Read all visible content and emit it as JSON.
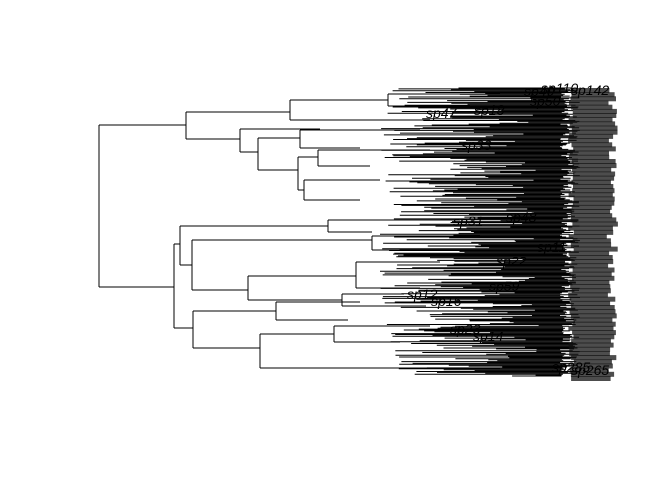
{
  "diagram": {
    "type": "phylogenetic-tree",
    "orientation": "rightwards",
    "tip_count": 320,
    "tip_labels_legible": [
      "sp40",
      "sp110",
      "sp142",
      "sp50",
      "sp47",
      "sp18",
      "sp33",
      "sp31",
      "sp48",
      "sp11",
      "sp22",
      "sp59",
      "sp12",
      "sp16",
      "sp23",
      "sp14",
      "sp285",
      "sp265"
    ]
  }
}
